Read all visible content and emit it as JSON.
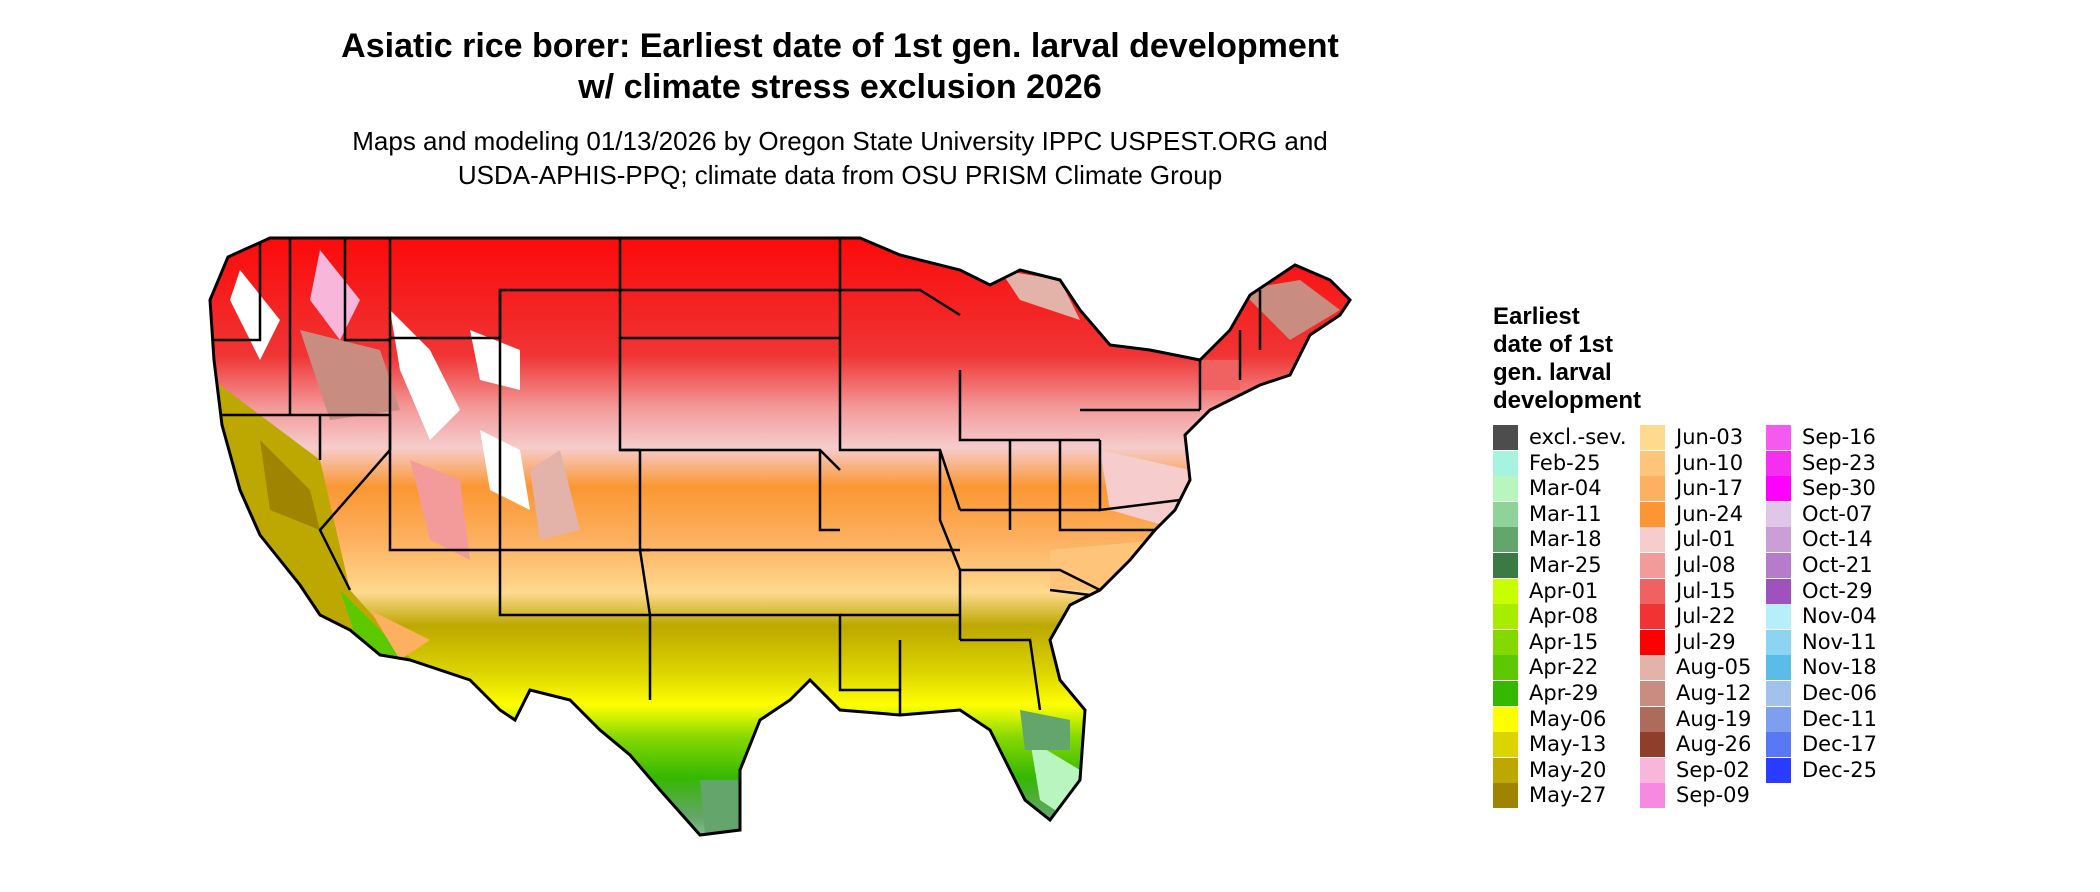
{
  "title": {
    "line1": "Asiatic rice borer: Earliest date of 1st gen. larval development",
    "line2": "w/ climate stress exclusion 2026"
  },
  "subtitle": {
    "line1": "Maps and modeling 01/13/2026 by Oregon State University IPPC USPEST.ORG and",
    "line2": "USDA-APHIS-PPQ; climate data from OSU PRISM Climate Group"
  },
  "legend": {
    "title_lines": [
      "Earliest",
      "date of 1st",
      "gen. larval",
      "development"
    ],
    "columns": [
      [
        {
          "label": "excl.-sev.",
          "color": "#4d4d4d"
        },
        {
          "label": "Feb-25",
          "color": "#a6f4e0"
        },
        {
          "label": "Mar-04",
          "color": "#b8f5bf"
        },
        {
          "label": "Mar-11",
          "color": "#8fd39a"
        },
        {
          "label": "Mar-18",
          "color": "#64a56c"
        },
        {
          "label": "Mar-25",
          "color": "#3c7a43"
        },
        {
          "label": "Apr-01",
          "color": "#c8ff00"
        },
        {
          "label": "Apr-08",
          "color": "#a8ec00"
        },
        {
          "label": "Apr-15",
          "color": "#84d800"
        },
        {
          "label": "Apr-22",
          "color": "#5cc800"
        },
        {
          "label": "Apr-29",
          "color": "#34b800"
        },
        {
          "label": "May-06",
          "color": "#ffff00"
        },
        {
          "label": "May-13",
          "color": "#dcd400"
        },
        {
          "label": "May-20",
          "color": "#bca800"
        },
        {
          "label": "May-27",
          "color": "#9e8400"
        }
      ],
      [
        {
          "label": "Jun-03",
          "color": "#fed98e"
        },
        {
          "label": "Jun-10",
          "color": "#fec57a"
        },
        {
          "label": "Jun-17",
          "color": "#fdb060"
        },
        {
          "label": "Jun-24",
          "color": "#fb9732"
        },
        {
          "label": "Jul-01",
          "color": "#f6cccc"
        },
        {
          "label": "Jul-08",
          "color": "#f39a9a"
        },
        {
          "label": "Jul-15",
          "color": "#f06262"
        },
        {
          "label": "Jul-22",
          "color": "#f03434"
        },
        {
          "label": "Jul-29",
          "color": "#ff0000"
        },
        {
          "label": "Aug-05",
          "color": "#e3b2a8"
        },
        {
          "label": "Aug-12",
          "color": "#c98c80"
        },
        {
          "label": "Aug-19",
          "color": "#ae6a5a"
        },
        {
          "label": "Aug-26",
          "color": "#8e3e2a"
        },
        {
          "label": "Sep-02",
          "color": "#f7b6da"
        },
        {
          "label": "Sep-09",
          "color": "#f78ae0"
        }
      ],
      [
        {
          "label": "Sep-16",
          "color": "#f45af0"
        },
        {
          "label": "Sep-23",
          "color": "#f62ef2"
        },
        {
          "label": "Sep-30",
          "color": "#ff00ff"
        },
        {
          "label": "Oct-07",
          "color": "#e0c6e8"
        },
        {
          "label": "Oct-14",
          "color": "#cc9ed8"
        },
        {
          "label": "Oct-21",
          "color": "#b67ccc"
        },
        {
          "label": "Oct-29",
          "color": "#9e52be"
        },
        {
          "label": "Nov-04",
          "color": "#b6eefa"
        },
        {
          "label": "Nov-11",
          "color": "#8cd4f0"
        },
        {
          "label": "Nov-18",
          "color": "#5cbce8"
        },
        {
          "label": "Dec-06",
          "color": "#a2c2ec"
        },
        {
          "label": "Dec-11",
          "color": "#7e9ef0"
        },
        {
          "label": "Dec-17",
          "color": "#5878f4"
        },
        {
          "label": "Dec-25",
          "color": "#2a3cff"
        }
      ]
    ]
  }
}
